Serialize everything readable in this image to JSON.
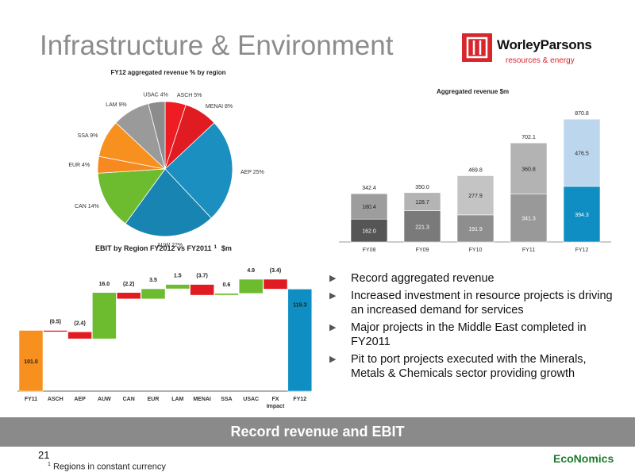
{
  "page": {
    "title": "Infrastructure & Environment",
    "number": "21",
    "banner": "Record revenue and EBIT",
    "footnote_marker": "1",
    "footnote": "Regions in constant currency",
    "economics_logo": "EcoNomics"
  },
  "logo": {
    "name": "WorleyParsons",
    "tagline": "resources & energy",
    "color": "#d8262c"
  },
  "bullets": [
    "Record aggregated revenue",
    "Increased investment in resource projects is driving an increased demand for services",
    "Major projects in the Middle East completed in FY2011",
    "Pit to port projects executed with the Minerals, Metals & Chemicals sector providing growth"
  ],
  "chart_data": [
    {
      "type": "pie",
      "title": "FY12 aggregated revenue % by region",
      "slices": [
        {
          "label": "ASCH 5%",
          "value": 5,
          "color": "#ee1d23"
        },
        {
          "label": "MENAI 8%",
          "value": 8,
          "color": "#e11b22"
        },
        {
          "label": "AEP 25%",
          "value": 25,
          "color": "#1b8fc0"
        },
        {
          "label": "AUW 22%",
          "value": 22,
          "color": "#1784b2"
        },
        {
          "label": "CAN  14%",
          "value": 14,
          "color": "#6dbb2e"
        },
        {
          "label": "EUR 4%",
          "value": 4,
          "color": "#f6891f"
        },
        {
          "label": "SSA 9%",
          "value": 9,
          "color": "#f7901e"
        },
        {
          "label": "LAM 9%",
          "value": 9,
          "color": "#9a9a9a"
        },
        {
          "label": "USAC 4%",
          "value": 4,
          "color": "#8c8c8c"
        }
      ]
    },
    {
      "type": "bar",
      "stacked": true,
      "title": "Aggregated revenue $m",
      "categories": [
        "FY08",
        "FY09",
        "FY10",
        "FY11",
        "FY12"
      ],
      "series": [
        {
          "values": [
            162.0,
            221.3,
            191.9,
            341.3,
            394.3
          ],
          "labels": [
            "162.0",
            "221.3",
            "191.9",
            "341.3",
            "394.3"
          ],
          "colors": [
            "#555555",
            "#7a7a7a",
            "#8e8e8e",
            "#999999",
            "#0e8ec2"
          ]
        },
        {
          "values": [
            180.4,
            128.7,
            277.9,
            360.8,
            476.5
          ],
          "labels": [
            "180.4",
            "128.7",
            "277.9",
            "360.8",
            "476.5"
          ],
          "colors": [
            "#9d9d9d",
            "#b4b4b4",
            "#c4c4c4",
            "#b3b3b3",
            "#bcd6ee"
          ]
        }
      ],
      "totals": [
        "342.4",
        "350.0",
        "469.8",
        "702.1",
        "870.8"
      ],
      "ylim": [
        0,
        900
      ]
    },
    {
      "type": "waterfall",
      "title": "EBIT by Region FY2012 vs FY2011",
      "title_marker": "1",
      "title_unit": "$m",
      "categories": [
        "FY11",
        "ASCH",
        "AEP",
        "AUW",
        "CAN",
        "EUR",
        "LAM",
        "MENAI",
        "SSA",
        "USAC",
        "FX Impact",
        "FY12"
      ],
      "values": [
        101.0,
        -0.5,
        -2.4,
        16.0,
        -2.2,
        3.5,
        1.5,
        -3.7,
        0.6,
        4.9,
        -3.4,
        115.3
      ],
      "labels": [
        "101.0",
        "(0.5)",
        "(2.4)",
        "16.0",
        "(2.2)",
        "3.5",
        "1.5",
        "(3.7)",
        "0.6",
        "4.9",
        "(3.4)",
        "115.3"
      ],
      "kinds": [
        "total",
        "delta",
        "delta",
        "delta",
        "delta",
        "delta",
        "delta",
        "delta",
        "delta",
        "delta",
        "delta",
        "total"
      ],
      "ylim": [
        80,
        122
      ],
      "colors": {
        "start": "#f7901e",
        "end": "#0e8ec2",
        "increase": "#6dbb2e",
        "decrease": "#e11b22"
      }
    }
  ]
}
